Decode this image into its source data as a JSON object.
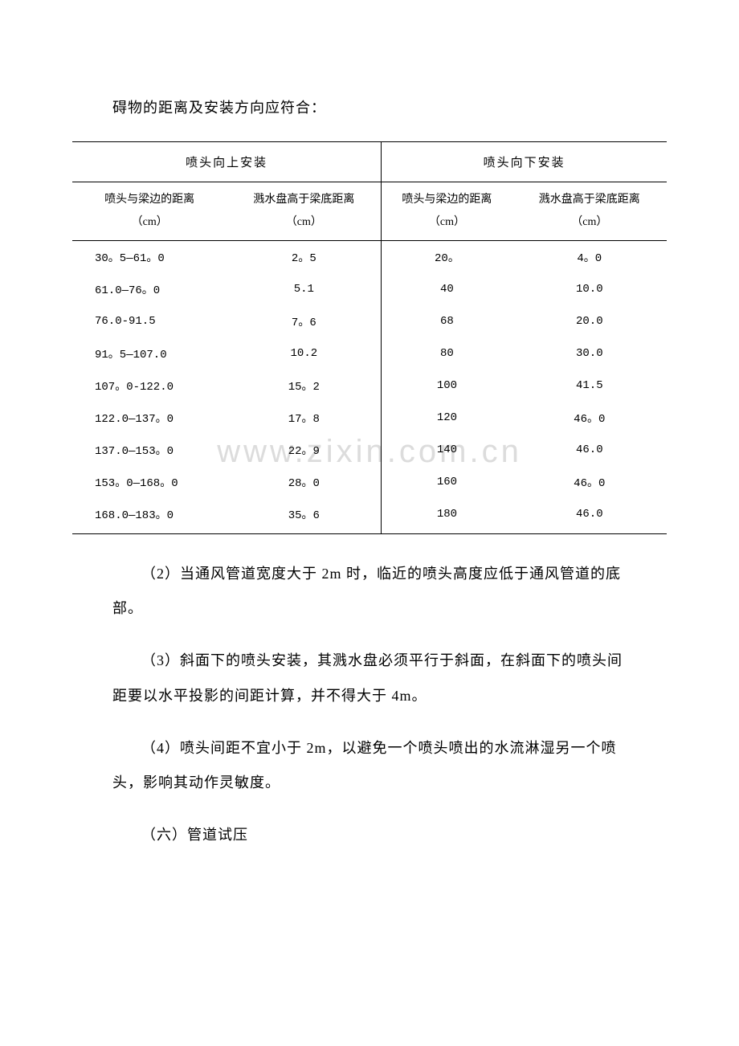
{
  "intro_text": "碍物的距离及安装方向应符合：",
  "table": {
    "header_top": {
      "up": "喷头向上安装",
      "down": "喷头向下安装"
    },
    "header_sub": {
      "col1_line1": "喷头与梁边的距离",
      "col1_line2": "（cm）",
      "col2_line1": "溅水盘高于梁底距离",
      "col2_line2": "（cm）",
      "col3_line1": "喷头与梁边的距离",
      "col3_line2": "（cm）",
      "col4_line1": "溅水盘高于梁底距离",
      "col4_line2": "（cm）"
    },
    "rows": [
      {
        "c1": "30。5—61。0",
        "c2": "2。5",
        "c3": "20。",
        "c4": "4。0"
      },
      {
        "c1": "61.0—76。0",
        "c2": "5.1",
        "c3": "40",
        "c4": "10.0"
      },
      {
        "c1": "76.0-91.5",
        "c2": "7。6",
        "c3": "68",
        "c4": "20.0"
      },
      {
        "c1": "91。5—107.0",
        "c2": "10.2",
        "c3": "80",
        "c4": "30.0"
      },
      {
        "c1": "107。0-122.0",
        "c2": "15。2",
        "c3": "100",
        "c4": "41.5"
      },
      {
        "c1": "122.0—137。0",
        "c2": "17。8",
        "c3": "120",
        "c4": "46。0"
      },
      {
        "c1": "137.0—153。0",
        "c2": "22。9",
        "c3": "140",
        "c4": "46.0"
      },
      {
        "c1": "153。0—168。0",
        "c2": "28。0",
        "c3": "160",
        "c4": "46。0"
      },
      {
        "c1": "168.0—183。0",
        "c2": "35。6",
        "c3": "180",
        "c4": "46.0"
      }
    ],
    "col_widths": [
      "26%",
      "26%",
      "22%",
      "26%"
    ],
    "border_color": "#000000",
    "font_size_header": 15,
    "font_size_body": 14
  },
  "paragraphs": {
    "p2": "（2）当通风管道宽度大于 2m 时，临近的喷头高度应低于通风管道的底部。",
    "p3": "（3）斜面下的喷头安装，其溅水盘必须平行于斜面，在斜面下的喷头间距要以水平投影的间距计算，并不得大于 4m。",
    "p4": "（4）喷头间距不宜小于 2m，以避免一个喷头喷出的水流淋湿另一个喷头，影响其动作灵敏度。",
    "p6": "（六）管道试压"
  },
  "watermark": {
    "text": "www.zixin.com.cn",
    "color": "#dcdcdc",
    "font_size": 40
  }
}
